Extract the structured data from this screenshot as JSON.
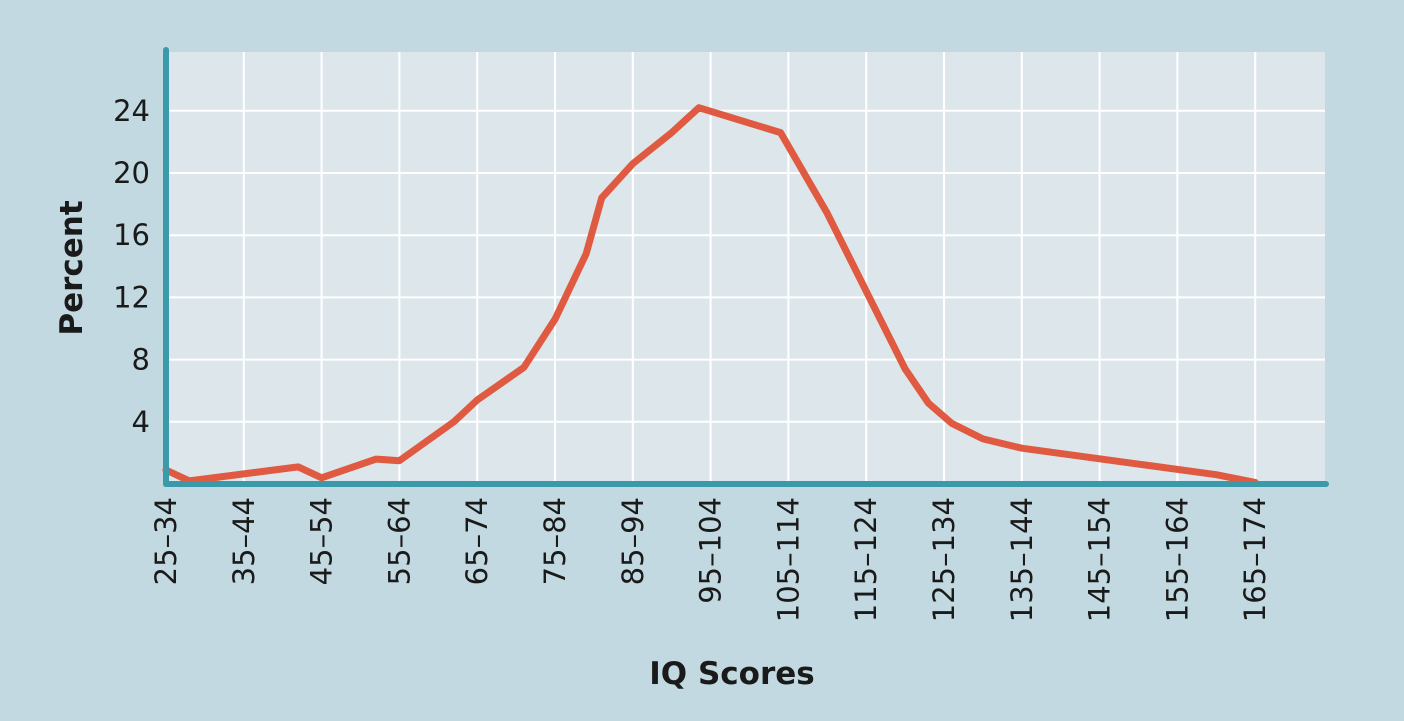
{
  "chart_data": {
    "type": "line",
    "title": "",
    "xlabel": "IQ Scores",
    "ylabel": "Percent",
    "categories": [
      "25–34",
      "35–44",
      "45–54",
      "55–64",
      "65–74",
      "75–84",
      "85–94",
      "95–104",
      "105–114",
      "115–124",
      "125–134",
      "135–144",
      "145–154",
      "155–164",
      "165–174"
    ],
    "yticks": [
      4,
      8,
      12,
      16,
      20,
      24
    ],
    "ylim": [
      0,
      28
    ],
    "grid": true,
    "series": [
      {
        "color": "#e05a41",
        "points": [
          {
            "x": 0.0,
            "y": 0.9
          },
          {
            "x": 0.3,
            "y": 0.2
          },
          {
            "x": 1.7,
            "y": 1.1
          },
          {
            "x": 2.0,
            "y": 0.4
          },
          {
            "x": 2.7,
            "y": 1.6
          },
          {
            "x": 3.0,
            "y": 1.5
          },
          {
            "x": 3.7,
            "y": 4.0
          },
          {
            "x": 4.0,
            "y": 5.4
          },
          {
            "x": 4.6,
            "y": 7.5
          },
          {
            "x": 5.0,
            "y": 10.6
          },
          {
            "x": 5.4,
            "y": 14.8
          },
          {
            "x": 5.6,
            "y": 18.4
          },
          {
            "x": 6.0,
            "y": 20.6
          },
          {
            "x": 6.5,
            "y": 22.6
          },
          {
            "x": 6.85,
            "y": 24.2
          },
          {
            "x": 7.9,
            "y": 22.6
          },
          {
            "x": 8.5,
            "y": 17.4
          },
          {
            "x": 9.0,
            "y": 12.4
          },
          {
            "x": 9.5,
            "y": 7.4
          },
          {
            "x": 9.8,
            "y": 5.2
          },
          {
            "x": 10.1,
            "y": 3.9
          },
          {
            "x": 10.5,
            "y": 2.9
          },
          {
            "x": 11.0,
            "y": 2.3
          },
          {
            "x": 13.5,
            "y": 0.6
          },
          {
            "x": 14.0,
            "y": 0.1
          }
        ]
      }
    ]
  },
  "colors": {
    "page_background": "#c2d9e1",
    "plot_background": "#dde7eb",
    "grid": "#ffffff",
    "axis": "#3b9aa9",
    "line": "#e05a41",
    "text": "#1a1a1a"
  }
}
